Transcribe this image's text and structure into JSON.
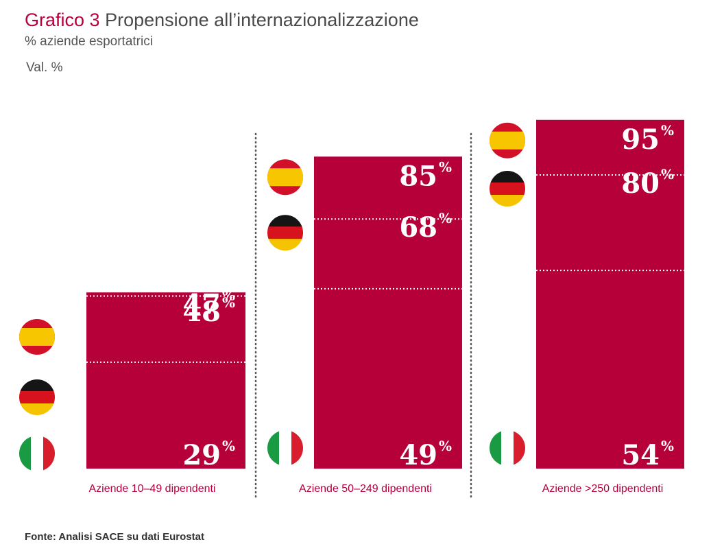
{
  "header": {
    "title_prefix": "Grafico 3",
    "title": "Propensione all’internazionalizzazione",
    "subtitle": "% aziende esportatrici",
    "unit": "Val. %"
  },
  "source": "Fonte: Analisi SACE su dati Eurostat",
  "colors": {
    "bar": "#b5003a",
    "accent": "#b5003a"
  },
  "chart_data": {
    "type": "bar",
    "categories": [
      "Aziende 10–49 dipendenti",
      "Aziende 50–249 dipendenti",
      "Aziende >250 dipendenti"
    ],
    "series": [
      {
        "name": "Spagna",
        "icon": "spain-flag-icon",
        "values": [
          48,
          85,
          95
        ]
      },
      {
        "name": "Germania",
        "icon": "germany-flag-icon",
        "values": [
          47,
          68,
          80
        ]
      },
      {
        "name": "Italia",
        "icon": "italy-flag-icon",
        "values": [
          29,
          49,
          54
        ]
      }
    ],
    "value_suffix": "%",
    "ylim": [
      0,
      100
    ],
    "grid": false
  }
}
